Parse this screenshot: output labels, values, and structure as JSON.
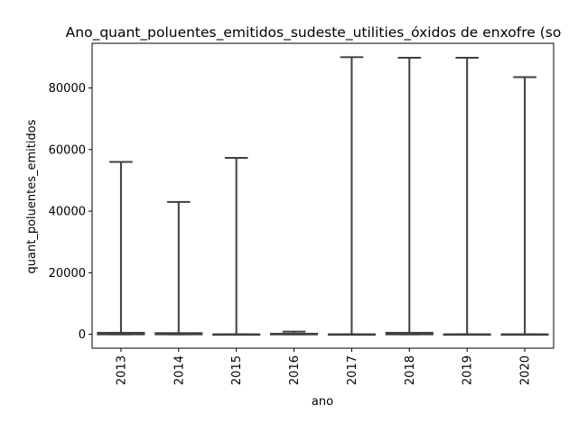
{
  "chart_data": {
    "type": "box",
    "title": "Ano_quant_poluentes_emitidos_sudeste_utilities_óxidos de enxofre (so",
    "xlabel": "ano",
    "ylabel": "quant_poluentes_emitidos",
    "categories": [
      "2013",
      "2014",
      "2015",
      "2016",
      "2017",
      "2018",
      "2019",
      "2020"
    ],
    "yticks": [
      0,
      20000,
      40000,
      60000,
      80000
    ],
    "ytick_labels": [
      "0",
      "20000",
      "40000",
      "60000",
      "80000"
    ],
    "ylim": [
      -4500,
      94500
    ],
    "boxes": [
      {
        "category": "2013",
        "whisker_low": 0,
        "q1": 0,
        "median": 200,
        "q3": 500,
        "whisker_high": 56000
      },
      {
        "category": "2014",
        "whisker_low": 0,
        "q1": 0,
        "median": 150,
        "q3": 400,
        "whisker_high": 43000
      },
      {
        "category": "2015",
        "whisker_low": 0,
        "q1": 0,
        "median": 0,
        "q3": 0,
        "whisker_high": 57300
      },
      {
        "category": "2016",
        "whisker_low": 0,
        "q1": 0,
        "median": 0,
        "q3": 200,
        "whisker_high": 900
      },
      {
        "category": "2017",
        "whisker_low": 0,
        "q1": 0,
        "median": 0,
        "q3": 0,
        "whisker_high": 90000
      },
      {
        "category": "2018",
        "whisker_low": 0,
        "q1": 0,
        "median": 200,
        "q3": 500,
        "whisker_high": 89800
      },
      {
        "category": "2019",
        "whisker_low": 0,
        "q1": 0,
        "median": 0,
        "q3": 0,
        "whisker_high": 89800
      },
      {
        "category": "2020",
        "whisker_low": 0,
        "q1": 0,
        "median": 0,
        "q3": 0,
        "whisker_high": 83500
      }
    ],
    "grid": false,
    "legend": "none",
    "colors": {
      "box_face": "#3274a1",
      "line": "#3f3f3f",
      "axis": "#000000"
    }
  }
}
